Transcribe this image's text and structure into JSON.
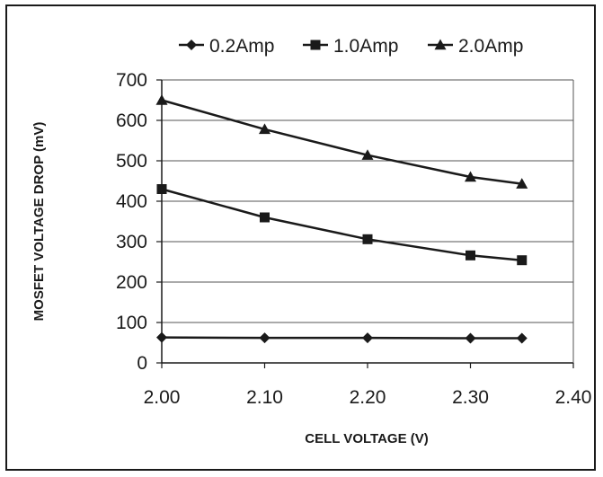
{
  "chart_data": {
    "type": "line",
    "title": "",
    "xlabel": "CELL VOLTAGE (V)",
    "ylabel": "MOSFET VOLTAGE DROP (mV)",
    "xlim": [
      2.0,
      2.4
    ],
    "ylim": [
      0,
      700
    ],
    "x_ticks": [
      "2.00",
      "2.10",
      "2.20",
      "2.30",
      "2.40"
    ],
    "y_ticks": [
      "0",
      "100",
      "200",
      "300",
      "400",
      "500",
      "600",
      "700"
    ],
    "grid": "horizontal",
    "legend_position": "top",
    "x": [
      2.0,
      2.1,
      2.2,
      2.3,
      2.35
    ],
    "series": [
      {
        "name": "0.2Amp",
        "marker": "diamond",
        "values": [
          63,
          62,
          62,
          61,
          61
        ]
      },
      {
        "name": "1.0Amp",
        "marker": "square",
        "values": [
          430,
          360,
          306,
          266,
          254
        ]
      },
      {
        "name": "2.0Amp",
        "marker": "triangle",
        "values": [
          650,
          578,
          514,
          460,
          443
        ]
      }
    ],
    "line_color": "#1a1a1a"
  }
}
